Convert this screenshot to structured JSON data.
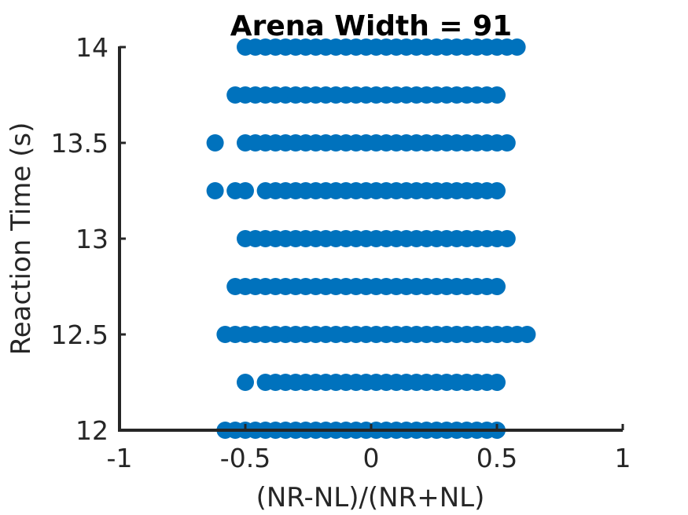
{
  "chart_data": {
    "type": "scatter",
    "title": "Arena Width =  91",
    "xlabel": "(NR-NL)/(NR+NL)",
    "ylabel": "Reaction Time (s)",
    "xlim": [
      -1,
      1
    ],
    "ylim": [
      12,
      14
    ],
    "x_ticks": [
      "-1",
      "-0.5",
      "0",
      "0.5",
      "1"
    ],
    "y_ticks": [
      "12",
      "12.5",
      "13",
      "13.5",
      "14"
    ],
    "grid": false,
    "marker_color": "#0072BD",
    "axis_color": "#262626",
    "rows": [
      {
        "y": 12.0,
        "x_min": -0.58,
        "x_max": 0.5,
        "extra_x": []
      },
      {
        "y": 12.25,
        "x_min": -0.42,
        "x_max": 0.5,
        "extra_x": [
          -0.5
        ]
      },
      {
        "y": 12.5,
        "x_min": -0.58,
        "x_max": 0.62,
        "extra_x": []
      },
      {
        "y": 12.75,
        "x_min": -0.54,
        "x_max": 0.5,
        "extra_x": []
      },
      {
        "y": 13.0,
        "x_min": -0.5,
        "x_max": 0.54,
        "extra_x": []
      },
      {
        "y": 13.25,
        "x_min": -0.42,
        "x_max": 0.5,
        "extra_x": [
          -0.62,
          -0.54,
          -0.5
        ]
      },
      {
        "y": 13.5,
        "x_min": -0.5,
        "x_max": 0.54,
        "extra_x": [
          -0.62
        ]
      },
      {
        "y": 13.75,
        "x_min": -0.54,
        "x_max": 0.5,
        "extra_x": []
      },
      {
        "y": 14.0,
        "x_min": -0.5,
        "x_max": 0.58,
        "extra_x": []
      }
    ],
    "x_step": 0.04
  }
}
